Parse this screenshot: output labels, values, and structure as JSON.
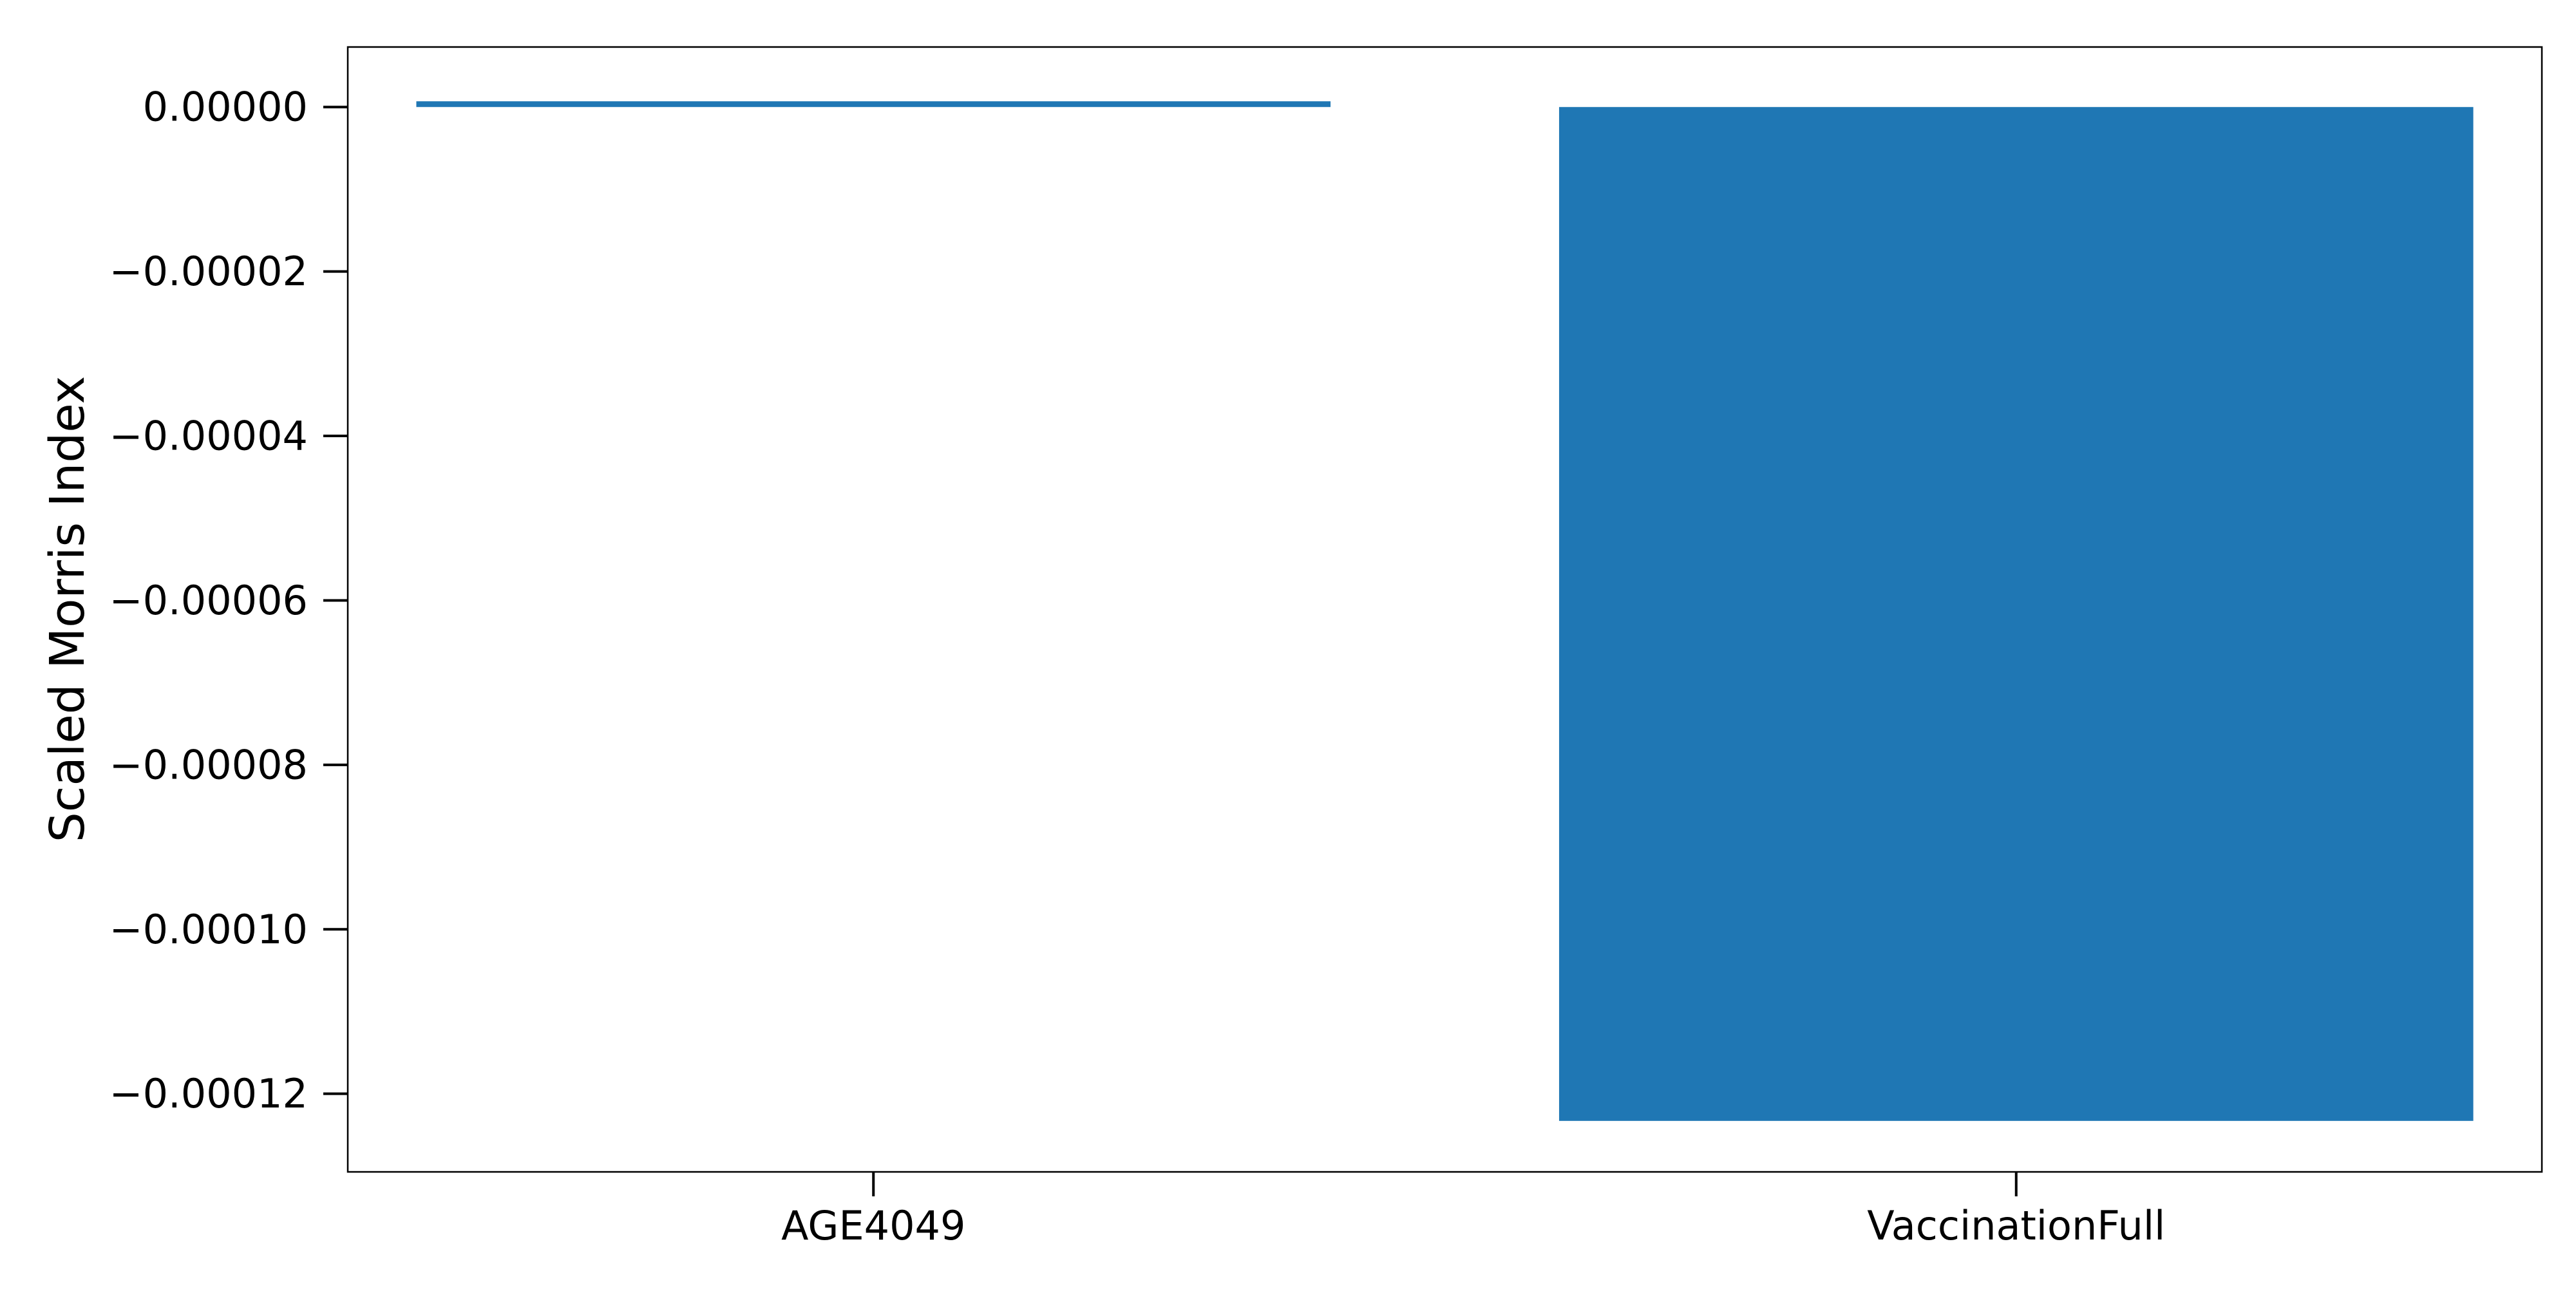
{
  "chart_data": {
    "type": "bar",
    "categories": [
      "AGE4049",
      "VaccinationFull"
    ],
    "series": [
      {
        "values": [
          7e-07,
          -0.0001233
        ]
      }
    ],
    "title": "",
    "xlabel": "",
    "ylabel": "Scaled Morris Index",
    "ylim": [
      -0.0001295,
      7.3e-06
    ],
    "yticks": [
      0.0,
      -2e-05,
      -4e-05,
      -6e-05,
      -8e-05,
      -0.0001,
      -0.00012
    ],
    "ytick_labels": [
      "0.00000",
      "−0.00002",
      "−0.00004",
      "−0.00006",
      "−0.00008",
      "−0.00010",
      "−0.00012"
    ],
    "grid": false,
    "bar_color": "#1f77b4"
  }
}
